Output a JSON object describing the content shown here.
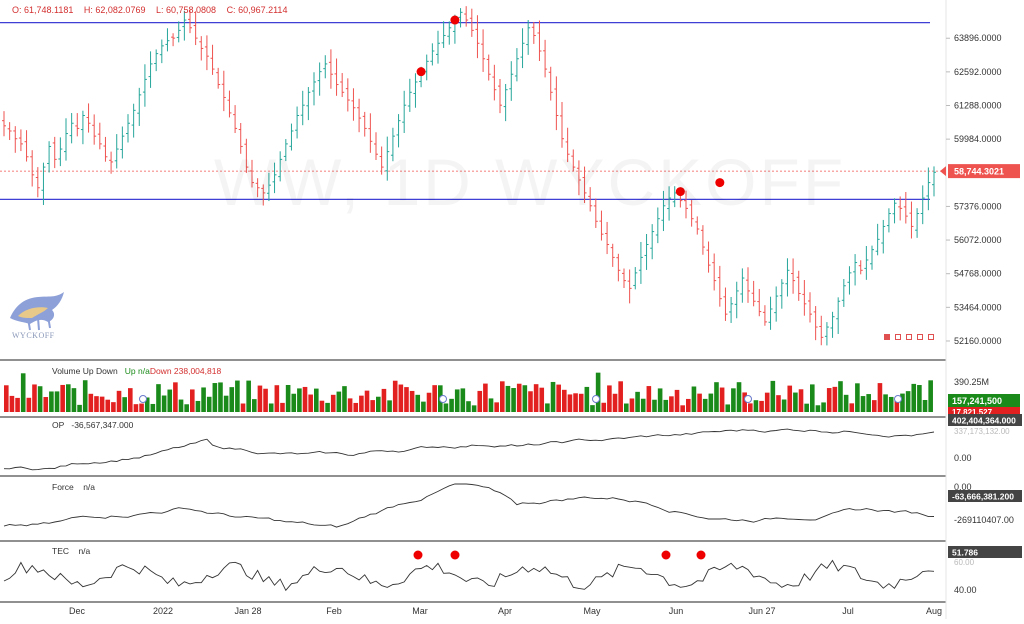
{
  "ohlc": {
    "open": "O: 61,748.1181",
    "high": "H: 62,082.0769",
    "low": "L: 60,758.0808",
    "close": "C: 60,967.2114"
  },
  "watermark": "WW, 1D WYCKOFF",
  "logo_text": "WYCKOFF",
  "price_axis": [
    "63896.0000",
    "62592.0000",
    "61288.0000",
    "59984.0000",
    "57376.0000",
    "56072.0000",
    "54768.0000",
    "53464.0000",
    "52160.0000"
  ],
  "last_price_label": "58,744.3021",
  "volume": {
    "title": "Volume Up Down",
    "up_label": "Up n/a",
    "down_label": "Down 238,004,818",
    "axis": "390.25M",
    "badge_up": "157,241,500",
    "badge_down": "17,821,527"
  },
  "op": {
    "title": "OP",
    "value": "-36,567,347.000",
    "badge": "402,404,364.000",
    "axis_hidden": "337,173,132.00",
    "axis": "0.00"
  },
  "force": {
    "title": "Force",
    "value": "n/a",
    "axis_top": "0.00",
    "badge": "-63,666,381.200",
    "axis": "-269110407.00"
  },
  "tec": {
    "title": "TEC",
    "value": "n/a",
    "badge": "51.786",
    "axis_hidden": "60.00",
    "axis": "40.00"
  },
  "time_axis": [
    "Dec",
    "2022",
    "Jan 28",
    "Feb",
    "Mar",
    "Apr",
    "May",
    "Jun",
    "Jun 27",
    "Jul",
    "Aug"
  ],
  "colors": {
    "up": "#26a69a",
    "down": "#ef5350",
    "vol_up": "#1a8a1a",
    "vol_down": "#e32020",
    "level": "#3f3fd6",
    "marker": "#ee0000",
    "price_badge": "#ef5350"
  },
  "chart_data": {
    "type": "ohlc",
    "note_levels": [
      64500,
      57650
    ],
    "current_price": 58744.3021,
    "close_series": [
      60500,
      60300,
      60000,
      59800,
      59300,
      58600,
      58100,
      58900,
      59700,
      59200,
      59600,
      60200,
      60600,
      60400,
      60900,
      60600,
      60100,
      59800,
      59300,
      59100,
      59600,
      60100,
      60600,
      61100,
      61700,
      62300,
      62900,
      63300,
      63600,
      63800,
      63900,
      64200,
      64600,
      64300,
      63900,
      63500,
      63200,
      62700,
      62100,
      61600,
      61000,
      60400,
      59700,
      58900,
      58300,
      58100,
      57900,
      58200,
      58600,
      59200,
      59800,
      60300,
      60900,
      61300,
      61800,
      62200,
      62600,
      62900,
      62500,
      62100,
      61800,
      61500,
      61200,
      60800,
      60400,
      59900,
      59400,
      58900,
      59500,
      60100,
      60700,
      61300,
      61800,
      62200,
      62600,
      63000,
      63400,
      63700,
      64000,
      64300,
      64600,
      64900,
      64600,
      64200,
      63700,
      63100,
      62500,
      61900,
      61300,
      61900,
      62500,
      63100,
      63700,
      64300,
      64000,
      63400,
      62700,
      61800,
      60900,
      60000,
      59400,
      58900,
      58400,
      57900,
      57400,
      56800,
      56300,
      55900,
      55400,
      54900,
      54500,
      54200,
      54800,
      55400,
      55900,
      56400,
      56900,
      57400,
      57700,
      57900,
      57600,
      57300,
      56900,
      56500,
      55800,
      55100,
      54500,
      53800,
      53200,
      53600,
      54100,
      54600,
      54100,
      53700,
      53300,
      52900,
      53400,
      53900,
      54400,
      54900,
      54500,
      54000,
      53600,
      53200,
      52700,
      52300,
      52700,
      53100,
      53700,
      54300,
      54800,
      55200,
      54900,
      55300,
      55700,
      56100,
      56600,
      57100,
      57500,
      57300,
      57000,
      56600,
      57100,
      57700,
      58300,
      58700
    ],
    "volume_bars": 165,
    "markers_price": [
      62600,
      64600,
      57950,
      58300
    ],
    "indicators": [
      "Volume Up Down",
      "OP",
      "Force",
      "TEC"
    ],
    "tec_markers": 4
  }
}
